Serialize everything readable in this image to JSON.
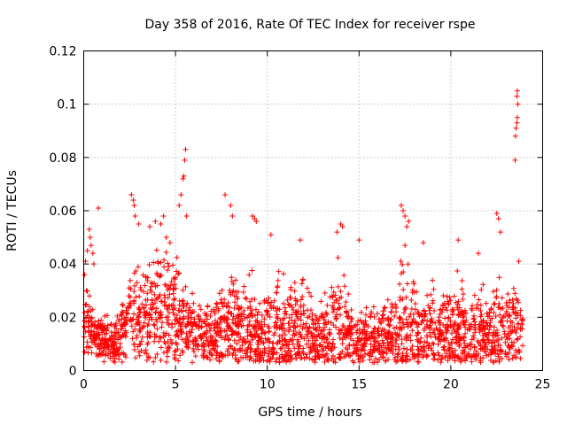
{
  "chart_data": {
    "type": "scatter",
    "title": "Day 358 of 2016, Rate Of TEC Index for receiver rspe",
    "xlabel": "GPS time / hours",
    "ylabel": "ROTI / TECUs",
    "xlim": [
      0,
      25
    ],
    "ylim": [
      0,
      0.12
    ],
    "x_ticks": [
      0,
      5,
      10,
      15,
      20,
      25
    ],
    "x_tick_labels": [
      "0",
      "5",
      "10",
      "15",
      "20",
      "25"
    ],
    "y_ticks": [
      0,
      0.02,
      0.04,
      0.06,
      0.08,
      0.1,
      0.12
    ],
    "y_tick_labels": [
      "0",
      "0.02",
      "0.04",
      "0.06",
      "0.08",
      "0.1",
      "0.12"
    ],
    "grid": true,
    "marker": "+",
    "series": [
      {
        "name": "ROTI",
        "color": "#ff0000",
        "points": [
          [
            0.05,
            0.036
          ],
          [
            0.1,
            0.041
          ],
          [
            0.15,
            0.03
          ],
          [
            0.2,
            0.045
          ],
          [
            0.3,
            0.053
          ],
          [
            0.35,
            0.05
          ],
          [
            0.4,
            0.047
          ],
          [
            0.5,
            0.044
          ],
          [
            0.55,
            0.04
          ],
          [
            0.8,
            0.061
          ],
          [
            2.6,
            0.066
          ],
          [
            2.7,
            0.064
          ],
          [
            2.75,
            0.062
          ],
          [
            2.8,
            0.058
          ],
          [
            3.0,
            0.055
          ],
          [
            3.6,
            0.054
          ],
          [
            3.9,
            0.056
          ],
          [
            4.2,
            0.055
          ],
          [
            4.35,
            0.058
          ],
          [
            4.5,
            0.05
          ],
          [
            4.7,
            0.048
          ],
          [
            5.2,
            0.062
          ],
          [
            5.3,
            0.066
          ],
          [
            5.4,
            0.072
          ],
          [
            5.45,
            0.073
          ],
          [
            5.5,
            0.079
          ],
          [
            5.55,
            0.083
          ],
          [
            5.6,
            0.058
          ],
          [
            7.7,
            0.066
          ],
          [
            8.0,
            0.062
          ],
          [
            8.1,
            0.058
          ],
          [
            9.2,
            0.058
          ],
          [
            9.3,
            0.057
          ],
          [
            9.4,
            0.056
          ],
          [
            10.2,
            0.051
          ],
          [
            11.8,
            0.049
          ],
          [
            13.8,
            0.052
          ],
          [
            14.0,
            0.055
          ],
          [
            14.1,
            0.054
          ],
          [
            15.0,
            0.049
          ],
          [
            17.3,
            0.062
          ],
          [
            17.4,
            0.06
          ],
          [
            17.5,
            0.058
          ],
          [
            17.6,
            0.054
          ],
          [
            17.7,
            0.056
          ],
          [
            18.5,
            0.048
          ],
          [
            20.4,
            0.049
          ],
          [
            21.5,
            0.044
          ],
          [
            22.5,
            0.059
          ],
          [
            22.6,
            0.057
          ],
          [
            22.7,
            0.052
          ],
          [
            23.5,
            0.079
          ],
          [
            23.52,
            0.088
          ],
          [
            23.55,
            0.091
          ],
          [
            23.6,
            0.093
          ],
          [
            23.62,
            0.095
          ],
          [
            23.65,
            0.1
          ],
          [
            23.6,
            0.103
          ],
          [
            23.62,
            0.105
          ],
          [
            23.7,
            0.041
          ]
        ]
      }
    ],
    "bands": [
      [
        0.0,
        0.015,
        0.006
      ],
      [
        0.3,
        0.02,
        0.01
      ],
      [
        0.6,
        0.012,
        0.006
      ],
      [
        1.0,
        0.012,
        0.006
      ],
      [
        1.5,
        0.01,
        0.006
      ],
      [
        2.0,
        0.012,
        0.008
      ],
      [
        2.5,
        0.022,
        0.012
      ],
      [
        3.0,
        0.02,
        0.014
      ],
      [
        3.5,
        0.022,
        0.016
      ],
      [
        4.0,
        0.025,
        0.018
      ],
      [
        4.5,
        0.022,
        0.018
      ],
      [
        5.0,
        0.02,
        0.016
      ],
      [
        5.5,
        0.018,
        0.012
      ],
      [
        6.0,
        0.015,
        0.008
      ],
      [
        6.5,
        0.014,
        0.008
      ],
      [
        7.0,
        0.014,
        0.008
      ],
      [
        7.5,
        0.016,
        0.012
      ],
      [
        8.0,
        0.018,
        0.012
      ],
      [
        8.5,
        0.016,
        0.012
      ],
      [
        9.0,
        0.015,
        0.014
      ],
      [
        9.5,
        0.013,
        0.012
      ],
      [
        10.0,
        0.014,
        0.014
      ],
      [
        10.5,
        0.015,
        0.016
      ],
      [
        11.0,
        0.014,
        0.014
      ],
      [
        11.5,
        0.015,
        0.014
      ],
      [
        12.0,
        0.014,
        0.012
      ],
      [
        12.5,
        0.013,
        0.01
      ],
      [
        13.0,
        0.012,
        0.01
      ],
      [
        13.5,
        0.014,
        0.014
      ],
      [
        14.0,
        0.016,
        0.018
      ],
      [
        14.5,
        0.012,
        0.01
      ],
      [
        15.0,
        0.011,
        0.008
      ],
      [
        15.5,
        0.012,
        0.008
      ],
      [
        16.0,
        0.012,
        0.008
      ],
      [
        16.5,
        0.013,
        0.01
      ],
      [
        17.0,
        0.014,
        0.012
      ],
      [
        17.5,
        0.016,
        0.018
      ],
      [
        18.0,
        0.016,
        0.016
      ],
      [
        18.5,
        0.015,
        0.012
      ],
      [
        19.0,
        0.014,
        0.012
      ],
      [
        19.5,
        0.015,
        0.012
      ],
      [
        20.0,
        0.016,
        0.012
      ],
      [
        20.5,
        0.015,
        0.012
      ],
      [
        21.0,
        0.014,
        0.012
      ],
      [
        21.5,
        0.014,
        0.012
      ],
      [
        22.0,
        0.013,
        0.01
      ],
      [
        22.5,
        0.015,
        0.014
      ],
      [
        23.0,
        0.014,
        0.012
      ],
      [
        23.5,
        0.016,
        0.014
      ],
      [
        23.9,
        0.014,
        0.008
      ]
    ]
  }
}
